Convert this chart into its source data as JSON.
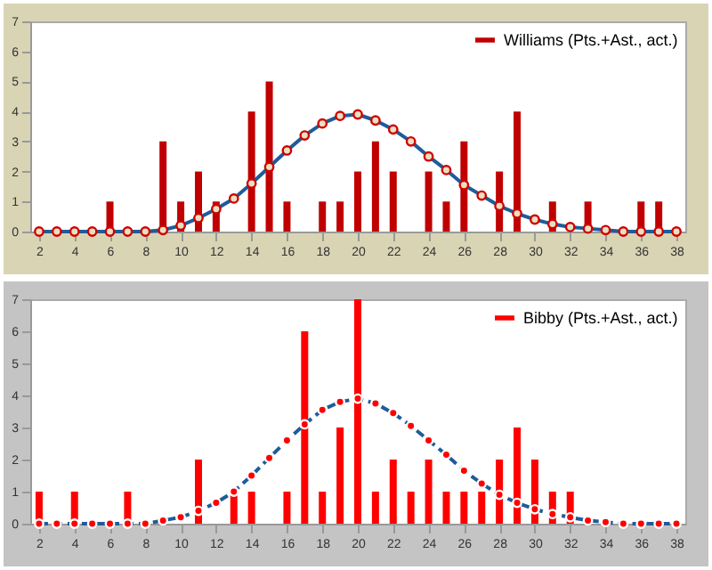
{
  "chart_data": [
    {
      "type": "bar",
      "x": [
        2,
        3,
        4,
        5,
        6,
        7,
        8,
        9,
        10,
        11,
        12,
        13,
        14,
        15,
        16,
        17,
        18,
        19,
        20,
        21,
        22,
        23,
        24,
        25,
        26,
        27,
        28,
        29,
        30,
        31,
        32,
        33,
        34,
        35,
        36,
        37,
        38
      ],
      "xlim": [
        1.5,
        38.5
      ],
      "xticks": [
        2,
        4,
        6,
        8,
        10,
        12,
        14,
        16,
        18,
        20,
        22,
        24,
        26,
        28,
        30,
        32,
        34,
        36,
        38
      ],
      "ylim": [
        0,
        7
      ],
      "yticks": [
        0,
        1,
        2,
        3,
        4,
        5,
        6,
        7
      ],
      "legend": "top right",
      "series": [
        {
          "name": "Williams (Pts.+Ast., act.)",
          "color": "#c00000",
          "values": [
            0,
            0,
            0,
            0,
            1,
            0,
            0,
            3,
            1,
            2,
            1,
            0,
            4,
            5,
            1,
            0,
            1,
            1,
            2,
            3,
            2,
            0,
            2,
            1,
            3,
            0,
            2,
            4,
            0,
            1,
            0,
            1,
            0,
            0,
            1,
            1,
            0
          ]
        },
        {
          "type": "line",
          "color": "#1f5c99",
          "marker": "circle",
          "line_style": "solid",
          "values": [
            0,
            0,
            0,
            0,
            0,
            0,
            0,
            0.05,
            0.2,
            0.45,
            0.75,
            1.1,
            1.6,
            2.15,
            2.7,
            3.2,
            3.6,
            3.85,
            3.9,
            3.7,
            3.4,
            3.0,
            2.5,
            2.05,
            1.55,
            1.2,
            0.85,
            0.6,
            0.4,
            0.25,
            0.15,
            0.1,
            0.05,
            0,
            0,
            0,
            0
          ]
        }
      ]
    },
    {
      "type": "bar",
      "x": [
        2,
        3,
        4,
        5,
        6,
        7,
        8,
        9,
        10,
        11,
        12,
        13,
        14,
        15,
        16,
        17,
        18,
        19,
        20,
        21,
        22,
        23,
        24,
        25,
        26,
        27,
        28,
        29,
        30,
        31,
        32,
        33,
        34,
        35,
        36,
        37,
        38
      ],
      "xlim": [
        1.5,
        38.5
      ],
      "xticks": [
        2,
        4,
        6,
        8,
        10,
        12,
        14,
        16,
        18,
        20,
        22,
        24,
        26,
        28,
        30,
        32,
        34,
        36,
        38
      ],
      "ylim": [
        0,
        7
      ],
      "yticks": [
        0,
        1,
        2,
        3,
        4,
        5,
        6,
        7
      ],
      "legend": "top right",
      "series": [
        {
          "name": "Bibby (Pts.+Ast., act.)",
          "color": "#ff0000",
          "values": [
            1,
            0,
            1,
            0,
            0,
            1,
            0,
            0,
            0,
            2,
            0,
            1,
            1,
            0,
            1,
            6,
            1,
            3,
            7,
            1,
            2,
            1,
            2,
            1,
            1,
            1,
            2,
            3,
            2,
            1,
            1,
            0,
            0,
            0,
            0,
            0,
            0
          ]
        },
        {
          "type": "line",
          "color": "#1f5c99",
          "marker": "circle",
          "line_style": "dashed",
          "values": [
            0,
            0,
            0,
            0,
            0,
            0,
            0,
            0.1,
            0.2,
            0.4,
            0.65,
            1.0,
            1.5,
            2.05,
            2.6,
            3.1,
            3.55,
            3.8,
            3.9,
            3.75,
            3.45,
            3.05,
            2.6,
            2.15,
            1.65,
            1.25,
            0.9,
            0.65,
            0.45,
            0.3,
            0.2,
            0.1,
            0.05,
            0,
            0,
            0,
            0
          ]
        }
      ]
    }
  ]
}
